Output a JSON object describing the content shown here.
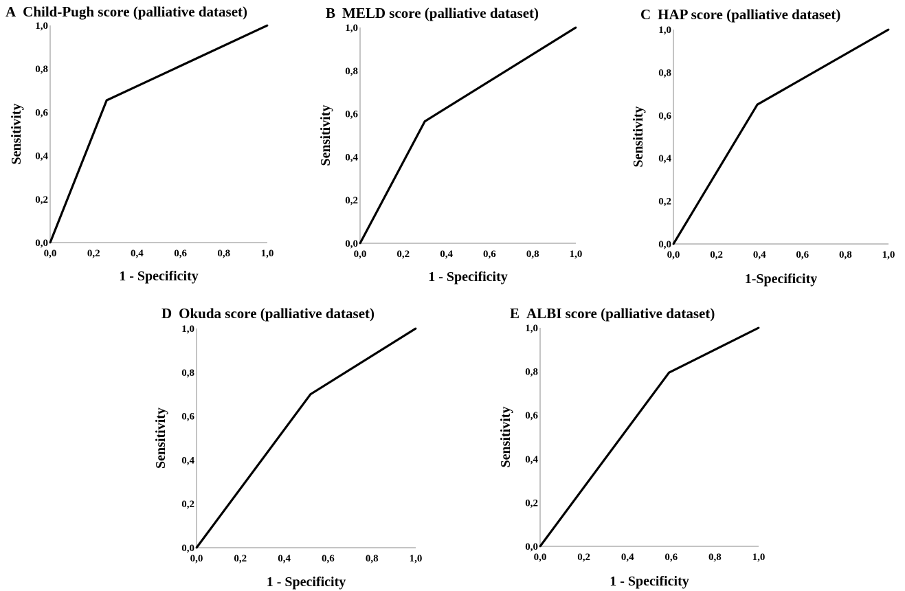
{
  "figure": {
    "background": "#ffffff",
    "line_color": "#000000",
    "axis_color": "#b0b0b0"
  },
  "chart_data": [
    {
      "type": "line",
      "panel": "A",
      "title": "Child-Pugh score (palliative dataset)",
      "xlabel": "1 - Specificity",
      "ylabel": "Sensitivity",
      "xlim": [
        0,
        1
      ],
      "ylim": [
        0,
        1
      ],
      "xticks": [
        "0,0",
        "0,2",
        "0,4",
        "0,6",
        "0,8",
        "1,0"
      ],
      "yticks": [
        "0,0",
        "0,2",
        "0,4",
        "0,6",
        "0,8",
        "1,0"
      ],
      "grid": false,
      "x": [
        0.0,
        0.26,
        1.0
      ],
      "y": [
        0.0,
        0.655,
        1.0
      ]
    },
    {
      "type": "line",
      "panel": "B",
      "title": "MELD score (palliative dataset)",
      "xlabel": "1 - Specificity",
      "ylabel": "Sensitivity",
      "xlim": [
        0,
        1
      ],
      "ylim": [
        0,
        1
      ],
      "xticks": [
        "0,0",
        "0,2",
        "0,4",
        "0,6",
        "0,8",
        "1,0"
      ],
      "yticks": [
        "0,0",
        "0,2",
        "0,4",
        "0,6",
        "0,8",
        "1,0"
      ],
      "grid": false,
      "x": [
        0.0,
        0.3,
        1.0
      ],
      "y": [
        0.0,
        0.565,
        1.0
      ]
    },
    {
      "type": "line",
      "panel": "C",
      "title": "HAP score (palliative dataset)",
      "xlabel": "1-Specificity",
      "ylabel": "Sensitivity",
      "xlim": [
        0,
        1
      ],
      "ylim": [
        0,
        1
      ],
      "xticks": [
        "0,0",
        "0,2",
        "0,4",
        "0,6",
        "0,8",
        "1,0"
      ],
      "yticks": [
        "0,0",
        "0,2",
        "0,4",
        "0,6",
        "0,8",
        "1,0"
      ],
      "grid": false,
      "x": [
        0.0,
        0.39,
        1.0
      ],
      "y": [
        0.0,
        0.65,
        1.0
      ]
    },
    {
      "type": "line",
      "panel": "D",
      "title": "Okuda score (palliative dataset)",
      "xlabel": "1 - Specificity",
      "ylabel": "Sensitivity",
      "xlim": [
        0,
        1
      ],
      "ylim": [
        0,
        1
      ],
      "xticks": [
        "0,0",
        "0,2",
        "0,4",
        "0,6",
        "0,8",
        "1,0"
      ],
      "yticks": [
        "0,0",
        "0,2",
        "0,4",
        "0,6",
        "0,8",
        "1,0"
      ],
      "grid": false,
      "x": [
        0.0,
        0.52,
        1.0
      ],
      "y": [
        0.0,
        0.7,
        1.0
      ]
    },
    {
      "type": "line",
      "panel": "E",
      "title": "ALBI score (palliative dataset)",
      "xlabel": "1 - Specificity",
      "ylabel": "Sensitivity",
      "xlim": [
        0,
        1
      ],
      "ylim": [
        0,
        1
      ],
      "xticks": [
        "0,0",
        "0,2",
        "0,4",
        "0,6",
        "0,8",
        "1,0"
      ],
      "yticks": [
        "0,0",
        "0,2",
        "0,4",
        "0,6",
        "0,8",
        "1,0"
      ],
      "grid": false,
      "x": [
        0.0,
        0.59,
        1.0
      ],
      "y": [
        0.0,
        0.795,
        1.0
      ]
    }
  ]
}
